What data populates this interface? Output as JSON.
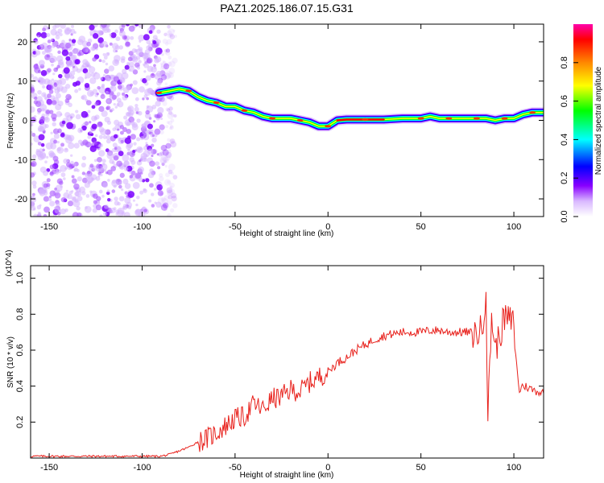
{
  "title": "PAZ1.2025.186.07.15.G31",
  "chart_data": [
    {
      "type": "heatmap",
      "xlabel": "Height of straight line (km)",
      "ylabel": "Frequency (Hz)",
      "xlim": [
        -160,
        116
      ],
      "ylim": [
        -24.5,
        24.5
      ],
      "xticks": [
        -150,
        -100,
        -50,
        0,
        50,
        100
      ],
      "yticks": [
        -20,
        -10,
        0,
        10,
        20
      ],
      "colorbar": {
        "label": "Normalized spectral amplitude",
        "range": [
          0,
          1
        ],
        "ticks": [
          "0.0",
          "0.2",
          "0.4",
          "0.6",
          "0.8"
        ],
        "colors": [
          "#ffffff",
          "#d9b8ff",
          "#8800ff",
          "#0000ff",
          "#00ffff",
          "#00ff00",
          "#ffff00",
          "#ff8800",
          "#ff0000",
          "#ff00aa"
        ]
      },
      "ridge": {
        "x": [
          -91,
          -85,
          -80,
          -75,
          -70,
          -65,
          -60,
          -55,
          -50,
          -45,
          -40,
          -35,
          -30,
          -25,
          -20,
          -15,
          -10,
          -5,
          0,
          5,
          10,
          20,
          30,
          40,
          50,
          55,
          60,
          65,
          70,
          75,
          80,
          85,
          90,
          95,
          100,
          105,
          110,
          116
        ],
        "y": [
          7,
          7.5,
          8,
          7.5,
          6,
          5,
          4.5,
          3.5,
          3.5,
          2.5,
          2,
          1,
          0.5,
          0.5,
          0.5,
          0,
          -0.5,
          -1.5,
          -1.5,
          0,
          0.2,
          0.2,
          0.2,
          0.5,
          0.5,
          1,
          0.5,
          0.5,
          0.5,
          0.5,
          0.5,
          0.5,
          0,
          0.5,
          0.5,
          1.5,
          2,
          2
        ]
      },
      "noise_region_x": [
        -160,
        -90
      ]
    },
    {
      "type": "line",
      "xlabel": "Height of straight line (km)",
      "ylabel": "SNR (10 * v/v)",
      "y_multiplier": "(x10^4)",
      "xlim": [
        -160,
        116
      ],
      "ylim": [
        0,
        1.07
      ],
      "xticks": [
        -150,
        -100,
        -50,
        0,
        50,
        100
      ],
      "yticks": [
        0.2,
        0.4,
        0.6,
        0.8,
        1.0
      ],
      "series": [
        {
          "color": "#e8211c",
          "x": [
            -160,
            -150,
            -140,
            -130,
            -120,
            -110,
            -100,
            -90,
            -85,
            -80,
            -75,
            -70,
            -65,
            -60,
            -55,
            -50,
            -45,
            -40,
            -35,
            -30,
            -25,
            -20,
            -15,
            -10,
            -5,
            0,
            5,
            10,
            15,
            20,
            25,
            30,
            35,
            40,
            45,
            50,
            55,
            60,
            65,
            70,
            75,
            80,
            83,
            85,
            86,
            88,
            90,
            95,
            100,
            102,
            104,
            106,
            110,
            116
          ],
          "y": [
            0.01,
            0.01,
            0.01,
            0.01,
            0.01,
            0.01,
            0.01,
            0.01,
            0.02,
            0.04,
            0.06,
            0.09,
            0.11,
            0.14,
            0.18,
            0.22,
            0.23,
            0.3,
            0.27,
            0.33,
            0.34,
            0.38,
            0.37,
            0.42,
            0.45,
            0.48,
            0.53,
            0.56,
            0.6,
            0.63,
            0.66,
            0.68,
            0.69,
            0.7,
            0.7,
            0.7,
            0.71,
            0.71,
            0.7,
            0.7,
            0.7,
            0.69,
            0.72,
            0.95,
            0.2,
            0.8,
            0.6,
            0.78,
            0.75,
            0.42,
            0.4,
            0.4,
            0.38,
            0.36
          ]
        }
      ]
    }
  ]
}
